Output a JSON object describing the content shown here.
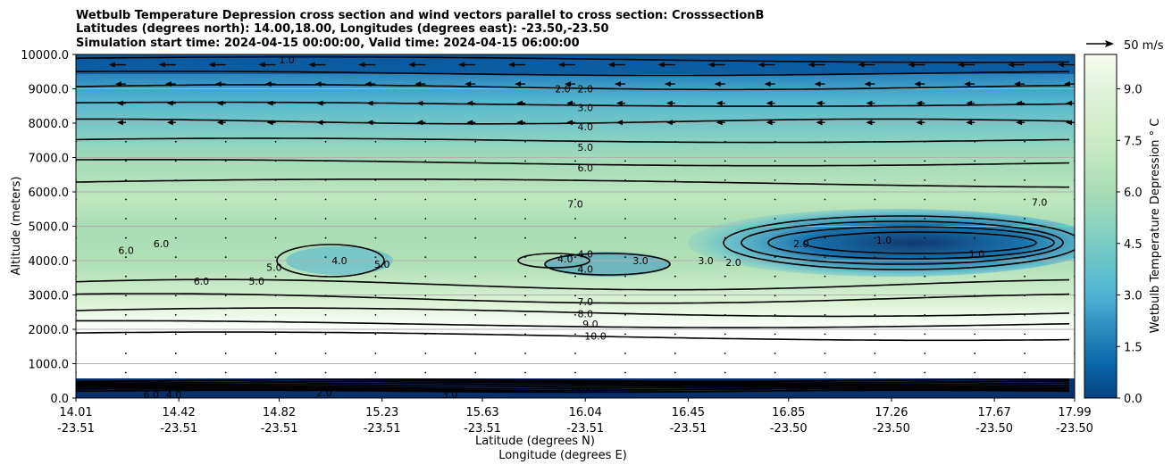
{
  "titles": [
    "Wetbulb Temperature Depression cross section and wind vectors parallel to cross section: CrosssectionB",
    "Latitudes (degrees north): 14.00,18.00, Longitudes (degrees east): -23.50,-23.50",
    "Simulation start time: 2024-04-15 00:00:00, Valid time: 2024-04-15 06:00:00"
  ],
  "chart_data": {
    "type": "contour",
    "title": "Wetbulb Temperature Depression cross section and wind vectors parallel to cross section: CrosssectionB",
    "xlabel_lat": "Latitude (degrees N)",
    "xlabel_lon": "Longitude (degrees E)",
    "ylabel": "Altitude (meters)",
    "ylim": [
      0,
      10000
    ],
    "xlim": [
      14.01,
      17.99
    ],
    "grid": "horizontal",
    "y_ticks": [
      "0.0",
      "1000.0",
      "2000.0",
      "3000.0",
      "4000.0",
      "5000.0",
      "6000.0",
      "7000.0",
      "8000.0",
      "9000.0",
      "10000.0"
    ],
    "y_tick_values": [
      0,
      1000,
      2000,
      3000,
      4000,
      5000,
      6000,
      7000,
      8000,
      9000,
      10000
    ],
    "x_ticks": [
      {
        "lat": "14.01",
        "lon": "-23.51",
        "value": 14.01
      },
      {
        "lat": "14.42",
        "lon": "-23.51",
        "value": 14.42
      },
      {
        "lat": "14.82",
        "lon": "-23.51",
        "value": 14.82
      },
      {
        "lat": "15.23",
        "lon": "-23.51",
        "value": 15.23
      },
      {
        "lat": "15.63",
        "lon": "-23.51",
        "value": 15.63
      },
      {
        "lat": "16.04",
        "lon": "-23.51",
        "value": 16.04
      },
      {
        "lat": "16.45",
        "lon": "-23.51",
        "value": 16.45
      },
      {
        "lat": "16.85",
        "lon": "-23.50",
        "value": 16.85
      },
      {
        "lat": "17.26",
        "lon": "-23.50",
        "value": 17.26
      },
      {
        "lat": "17.67",
        "lon": "-23.50",
        "value": 17.67
      },
      {
        "lat": "17.99",
        "lon": "-23.50",
        "value": 17.99
      }
    ],
    "colorbar": {
      "label": "Wetbulb Temperature Depression ° C",
      "ticks": [
        "0.0",
        "1.5",
        "3.0",
        "4.5",
        "6.0",
        "7.5",
        "9.0"
      ],
      "tick_values": [
        0,
        1.5,
        3.0,
        4.5,
        6.0,
        7.5,
        9.0
      ],
      "range": [
        0,
        10
      ],
      "colormap": "GnBu_r",
      "levels": 20
    },
    "quiver_key": {
      "label": "50 m/s",
      "speed": 50
    },
    "contour_levels": [
      1.0,
      2.0,
      3.0,
      4.0,
      5.0,
      6.0,
      7.0,
      8.0,
      9.0,
      10.0
    ],
    "contour_labels": [
      {
        "text": "1.0",
        "lat": 14.85,
        "alt": 9850
      },
      {
        "text": "2.0",
        "lat": 15.95,
        "alt": 9000
      },
      {
        "text": "2.0",
        "lat": 16.04,
        "alt": 9000
      },
      {
        "text": "3.0",
        "lat": 16.04,
        "alt": 8450
      },
      {
        "text": "4.0",
        "lat": 16.04,
        "alt": 7900
      },
      {
        "text": "5.0",
        "lat": 16.04,
        "alt": 7300
      },
      {
        "text": "6.0",
        "lat": 16.04,
        "alt": 6700
      },
      {
        "text": "7.0",
        "lat": 16.0,
        "alt": 5650
      },
      {
        "text": "7.0",
        "lat": 17.85,
        "alt": 5700
      },
      {
        "text": "6.0",
        "lat": 14.21,
        "alt": 4300
      },
      {
        "text": "6.0",
        "lat": 14.35,
        "alt": 4500
      },
      {
        "text": "6.0",
        "lat": 14.51,
        "alt": 3400
      },
      {
        "text": "5.0",
        "lat": 14.73,
        "alt": 3400
      },
      {
        "text": "5.0",
        "lat": 14.8,
        "alt": 3800
      },
      {
        "text": "4.0",
        "lat": 15.06,
        "alt": 4000
      },
      {
        "text": "5.0",
        "lat": 15.23,
        "alt": 3900
      },
      {
        "text": "4.0",
        "lat": 15.96,
        "alt": 4050
      },
      {
        "text": "4.0",
        "lat": 16.04,
        "alt": 4200
      },
      {
        "text": "4.0",
        "lat": 16.04,
        "alt": 3750
      },
      {
        "text": "3.0",
        "lat": 16.26,
        "alt": 4000
      },
      {
        "text": "3.0",
        "lat": 16.52,
        "alt": 4000
      },
      {
        "text": "2.0",
        "lat": 16.63,
        "alt": 3950
      },
      {
        "text": "2.0",
        "lat": 16.9,
        "alt": 4500
      },
      {
        "text": "1.0",
        "lat": 17.23,
        "alt": 4600
      },
      {
        "text": "1.0",
        "lat": 17.6,
        "alt": 4200
      },
      {
        "text": "7.0",
        "lat": 16.04,
        "alt": 2800
      },
      {
        "text": "8.0",
        "lat": 16.04,
        "alt": 2450
      },
      {
        "text": "9.0",
        "lat": 16.06,
        "alt": 2150
      },
      {
        "text": "10.0",
        "lat": 16.08,
        "alt": 1800
      },
      {
        "text": "10.0",
        "lat": 16.02,
        "alt": 350
      },
      {
        "text": "4.0",
        "lat": 14.4,
        "alt": 100
      },
      {
        "text": "6.0",
        "lat": 14.31,
        "alt": 100
      },
      {
        "text": "3.0",
        "lat": 15.5,
        "alt": 100
      },
      {
        "text": "2.0",
        "lat": 15.0,
        "alt": 150
      }
    ]
  }
}
